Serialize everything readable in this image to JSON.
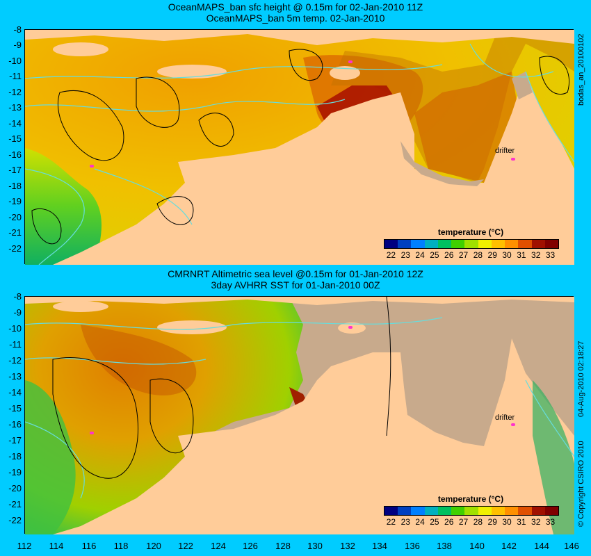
{
  "top_panel": {
    "title_line1": "OceanMAPS_ban sfc height @ 0.15m for 02-Jan-2010 11Z",
    "title_line2": "OceanMAPS_ban 5m temp. 02-Jan-2010",
    "side_label": "bodas_an_20100102",
    "drifter_label": "drifter"
  },
  "bottom_panel": {
    "title_line1": "CMRNRT Altimetric sea level  @0.15m  for 01-Jan-2010 12Z",
    "title_line2": "3day AVHRR SST for 01-Jan-2010 00Z",
    "side_label": "04-Aug-2010 02:18:27",
    "copyright": "© Copyright CSIRO 2010",
    "drifter_label": "drifter"
  },
  "legend": {
    "title": "temperature (°C)",
    "ticks": [
      "22",
      "23",
      "24",
      "25",
      "26",
      "27",
      "28",
      "29",
      "30",
      "31",
      "32",
      "33"
    ],
    "colors": [
      "#000080",
      "#0040c0",
      "#0080ff",
      "#00b0c0",
      "#00c060",
      "#40d000",
      "#a0e000",
      "#f0f000",
      "#ffc000",
      "#ff9000",
      "#e05000",
      "#a01000",
      "#800000"
    ]
  },
  "y_axis_labels": [
    "-8",
    "-9",
    "-10",
    "-11",
    "-12",
    "-13",
    "-14",
    "-15",
    "-16",
    "-17",
    "-18",
    "-19",
    "-20",
    "-21",
    "-22"
  ],
  "x_axis_labels": [
    "112",
    "114",
    "116",
    "118",
    "120",
    "122",
    "124",
    "126",
    "128",
    "130",
    "132",
    "134",
    "136",
    "138",
    "140",
    "142",
    "144",
    "146"
  ],
  "colors": {
    "background": "#00ccff",
    "land": "#ffcc99",
    "no_data": "#c8aa8c",
    "contour": "#66dddd"
  }
}
